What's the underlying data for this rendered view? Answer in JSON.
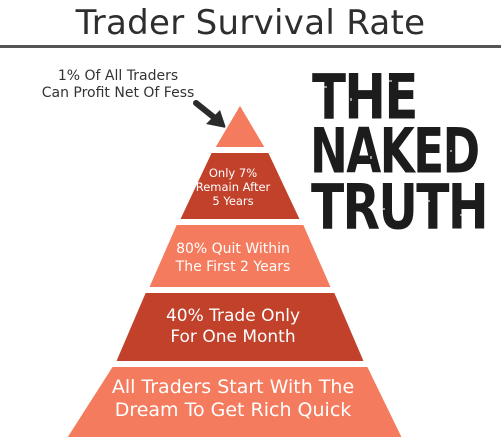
{
  "title": "Trader Survival Rate",
  "annotation": {
    "line1": "1% Of All Traders",
    "line2": "Can Profit Net Of Fess"
  },
  "pyramid": {
    "colors": {
      "light": "#f47b5d",
      "dark": "#c1412a",
      "border": "#ffffff"
    },
    "tiers": [
      {
        "lines": []
      },
      {
        "lines": [
          "Only 7%",
          "Remain After",
          "5 Years"
        ]
      },
      {
        "lines": [
          "80% Quit Within",
          "The First 2 Years"
        ]
      },
      {
        "lines": [
          "40% Trade Only",
          "For One Month"
        ]
      },
      {
        "lines": [
          "All Traders Start With The",
          "Dream To Get Rich Quick"
        ]
      }
    ]
  },
  "logo": {
    "line1": "THE",
    "line2": "NAKED",
    "line3": "TRUTH",
    "color": "#1c1c1c"
  }
}
